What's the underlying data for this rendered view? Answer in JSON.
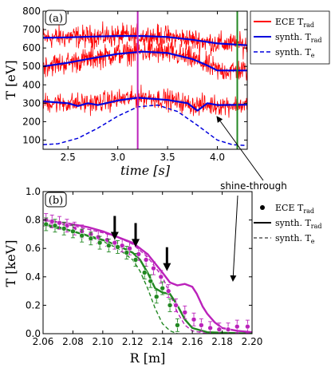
{
  "chart_data": [
    {
      "panel_label": "(a)",
      "type": "line",
      "xlabel": "time [s]",
      "ylabel": "T [eV]",
      "xlim": [
        2.25,
        4.3
      ],
      "ylim": [
        50,
        800
      ],
      "xticks": [
        2.5,
        3.0,
        3.5,
        4.0
      ],
      "xtick_labels": [
        "2.5",
        "3.0",
        "3.5",
        "4.0"
      ],
      "yticks": [
        100,
        200,
        300,
        400,
        500,
        600,
        700,
        800
      ],
      "ytick_labels": [
        "100",
        "200",
        "300",
        "400",
        "500",
        "600",
        "700",
        "800"
      ],
      "vlines": [
        {
          "x": 3.2,
          "color": "#bb22bb"
        },
        {
          "x": 4.2,
          "color": "#228822"
        }
      ],
      "legend": {
        "placement": "outside-right",
        "entries": [
          {
            "label": "ECE T",
            "sub": "rad",
            "color": "#ff0000",
            "style": "solid"
          },
          {
            "label": "synth. T",
            "sub": "rad",
            "color": "#0000dd",
            "style": "solid"
          },
          {
            "label": "synth. T",
            "sub": "e",
            "color": "#0000dd",
            "style": "dashed"
          }
        ]
      },
      "series": [
        {
          "kind": "synth_trad",
          "x": [
            2.25,
            2.5,
            2.75,
            3.0,
            3.25,
            3.5,
            3.75,
            4.0,
            4.3
          ],
          "y": [
            655,
            658,
            662,
            665,
            665,
            660,
            645,
            625,
            615
          ]
        },
        {
          "kind": "synth_trad",
          "x": [
            2.25,
            2.5,
            2.75,
            3.0,
            3.25,
            3.5,
            3.75,
            3.9,
            4.0,
            4.3
          ],
          "y": [
            500,
            520,
            545,
            568,
            580,
            573,
            540,
            505,
            478,
            478
          ]
        },
        {
          "kind": "synth_trad",
          "x": [
            2.25,
            2.5,
            2.6,
            2.7,
            2.8,
            3.0,
            3.2,
            3.5,
            3.7,
            3.8,
            3.9,
            4.0,
            4.3
          ],
          "y": [
            310,
            300,
            285,
            300,
            290,
            315,
            330,
            318,
            300,
            260,
            300,
            290,
            292
          ]
        },
        {
          "kind": "synth_te",
          "x": [
            2.25,
            2.4,
            2.6,
            2.8,
            3.0,
            3.2,
            3.4,
            3.6,
            3.8,
            4.0,
            4.15,
            4.3
          ],
          "y": [
            75,
            80,
            110,
            165,
            230,
            280,
            290,
            255,
            180,
            100,
            75,
            70
          ]
        },
        {
          "kind": "ece_trad",
          "mean_x": [
            2.25,
            2.5,
            2.75,
            3.0,
            3.25,
            3.5,
            3.75,
            4.0,
            4.3
          ],
          "mean_y": [
            655,
            660,
            662,
            665,
            665,
            660,
            645,
            625,
            615
          ],
          "spread": 55
        },
        {
          "kind": "ece_trad",
          "mean_x": [
            2.25,
            2.5,
            2.75,
            3.0,
            3.25,
            3.5,
            3.75,
            3.9,
            4.0,
            4.3
          ],
          "mean_y": [
            505,
            520,
            545,
            568,
            580,
            573,
            540,
            505,
            478,
            478
          ],
          "spread": 55
        },
        {
          "kind": "ece_trad",
          "mean_x": [
            2.25,
            2.5,
            2.75,
            3.0,
            3.25,
            3.5,
            3.75,
            4.0,
            4.3
          ],
          "mean_y": [
            305,
            300,
            300,
            320,
            335,
            320,
            290,
            290,
            292
          ],
          "spread": 50
        }
      ]
    },
    {
      "panel_label": "(b)",
      "type": "line",
      "xlabel": "R [m]",
      "ylabel": "T [keV]",
      "xlim": [
        2.06,
        2.2
      ],
      "ylim": [
        0.0,
        1.0
      ],
      "xticks": [
        2.06,
        2.08,
        2.1,
        2.12,
        2.14,
        2.16,
        2.18,
        2.2
      ],
      "xtick_labels": [
        "2.06",
        "2.08",
        "2.10",
        "2.12",
        "2.14",
        "2.16",
        "2.18",
        "2.20"
      ],
      "yticks": [
        0.0,
        0.2,
        0.4,
        0.6,
        0.8,
        1.0
      ],
      "ytick_labels": [
        "0.0",
        "0.2",
        "0.4",
        "0.6",
        "0.8",
        "1.0"
      ],
      "annotation": "shine-through",
      "arrows_at": [
        {
          "x": 2.108,
          "y": 0.66
        },
        {
          "x": 2.122,
          "y": 0.61
        },
        {
          "x": 2.143,
          "y": 0.44
        }
      ],
      "legend": {
        "placement": "outside-right",
        "entries": [
          {
            "label": "ECE T",
            "sub": "rad",
            "color": "#000000",
            "style": "marker"
          },
          {
            "label": "synth. T",
            "sub": "rad",
            "color": "#000000",
            "style": "solid"
          },
          {
            "label": "synth. T",
            "sub": "e",
            "color": "#000000",
            "style": "dashed"
          }
        ]
      },
      "series": [
        {
          "kind": "ece_points",
          "color": "#bb22bb",
          "x": [
            2.062,
            2.066,
            2.071,
            2.076,
            2.081,
            2.086,
            2.092,
            2.097,
            2.103,
            2.108,
            2.113,
            2.118,
            2.124,
            2.129,
            2.134,
            2.139,
            2.144,
            2.149,
            2.155,
            2.161,
            2.166,
            2.172,
            2.178,
            2.184,
            2.19,
            2.197
          ],
          "y": [
            0.8,
            0.79,
            0.78,
            0.76,
            0.74,
            0.72,
            0.7,
            0.68,
            0.66,
            0.64,
            0.62,
            0.6,
            0.56,
            0.52,
            0.46,
            0.4,
            0.3,
            0.2,
            0.15,
            0.1,
            0.06,
            0.04,
            0.03,
            0.03,
            0.05,
            0.05
          ]
        },
        {
          "kind": "ece_points",
          "color": "#228822",
          "x": [
            2.062,
            2.068,
            2.074,
            2.08,
            2.086,
            2.092,
            2.098,
            2.104,
            2.11,
            2.116,
            2.122,
            2.128,
            2.132,
            2.136,
            2.14,
            2.145,
            2.15
          ],
          "y": [
            0.77,
            0.76,
            0.74,
            0.72,
            0.69,
            0.67,
            0.64,
            0.62,
            0.61,
            0.57,
            0.52,
            0.43,
            0.37,
            0.26,
            0.32,
            0.2,
            0.06
          ]
        },
        {
          "kind": "synth_trad",
          "color": "#bb22bb",
          "x": [
            2.06,
            2.07,
            2.08,
            2.09,
            2.1,
            2.11,
            2.12,
            2.13,
            2.14,
            2.145,
            2.15,
            2.155,
            2.16,
            2.163,
            2.167,
            2.17,
            2.175,
            2.18,
            2.19,
            2.2
          ],
          "y": [
            0.8,
            0.785,
            0.77,
            0.75,
            0.72,
            0.68,
            0.64,
            0.56,
            0.43,
            0.36,
            0.34,
            0.35,
            0.33,
            0.28,
            0.19,
            0.14,
            0.08,
            0.04,
            0.02,
            0.01
          ]
        },
        {
          "kind": "synth_te",
          "color": "#bb22bb",
          "x": [
            2.06,
            2.08,
            2.1,
            2.11,
            2.12,
            2.13,
            2.14,
            2.145,
            2.15,
            2.155,
            2.16,
            2.17
          ],
          "y": [
            0.78,
            0.76,
            0.71,
            0.68,
            0.63,
            0.54,
            0.4,
            0.28,
            0.15,
            0.06,
            0.02,
            0.0
          ]
        },
        {
          "kind": "synth_trad",
          "color": "#228822",
          "x": [
            2.06,
            2.07,
            2.08,
            2.09,
            2.1,
            2.11,
            2.12,
            2.125,
            2.13,
            2.135,
            2.14,
            2.145,
            2.15,
            2.155,
            2.16,
            2.17,
            2.2
          ],
          "y": [
            0.77,
            0.75,
            0.72,
            0.69,
            0.66,
            0.62,
            0.57,
            0.52,
            0.43,
            0.32,
            0.29,
            0.28,
            0.2,
            0.1,
            0.04,
            0.01,
            0.0
          ]
        },
        {
          "kind": "synth_te",
          "color": "#228822",
          "x": [
            2.06,
            2.08,
            2.1,
            2.11,
            2.12,
            2.125,
            2.13,
            2.135,
            2.14,
            2.145,
            2.15
          ],
          "y": [
            0.76,
            0.72,
            0.65,
            0.6,
            0.52,
            0.44,
            0.32,
            0.18,
            0.07,
            0.02,
            0.0
          ]
        }
      ]
    }
  ]
}
